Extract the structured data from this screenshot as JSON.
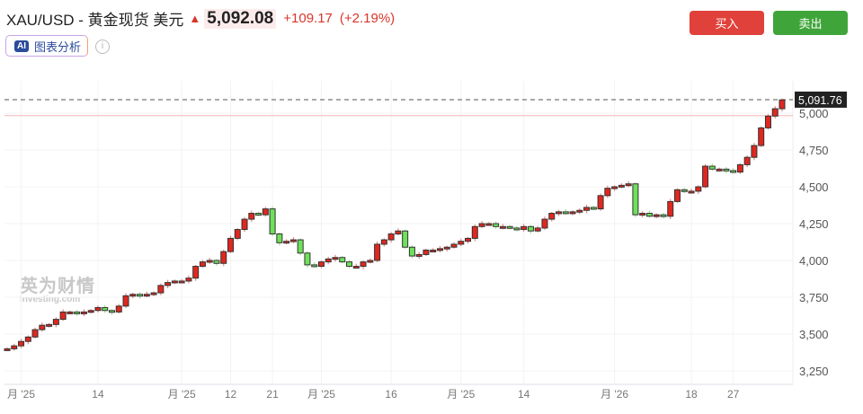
{
  "header": {
    "symbol": "XAU/USD - 黄金现货 美元",
    "direction_icon": "arrow-up-icon",
    "price": "5,092.08",
    "change": "+109.17",
    "change_pct": "(+2.19%)"
  },
  "ai_button": {
    "badge": "AI",
    "label": "图表分析"
  },
  "info_icon": "i",
  "buttons": {
    "buy": "买入",
    "sell": "卖出"
  },
  "watermark": {
    "cn": "英为财情",
    "en": "Investing.com"
  },
  "colors": {
    "up": "#e0271f",
    "down": "#6fe05a",
    "buy": "#e0413a",
    "sell": "#3fa53a",
    "prev_close_line": "#f5b5b5"
  },
  "chart_data": {
    "type": "candlestick",
    "y_ticks": [
      "3,250",
      "3,500",
      "3,750",
      "4,000",
      "4,250",
      "4,500",
      "4,750",
      "5,000"
    ],
    "y_tick_values": [
      3250,
      3500,
      3750,
      4000,
      4250,
      4500,
      4750,
      5000
    ],
    "ylim": [
      3200,
      5130
    ],
    "current_price_label": "5,091.76",
    "current_price": 5091.76,
    "previous_close": 4982.91,
    "x_ticks": [
      {
        "label": "月 '25",
        "index": 2
      },
      {
        "label": "14",
        "index": 13
      },
      {
        "label": "月 '25",
        "index": 25
      },
      {
        "label": "12",
        "index": 32
      },
      {
        "label": "21",
        "index": 38
      },
      {
        "label": "月 '25",
        "index": 45
      },
      {
        "label": "16",
        "index": 55
      },
      {
        "label": "月 '25",
        "index": 65
      },
      {
        "label": "14",
        "index": 74
      },
      {
        "label": "月 '26",
        "index": 87
      },
      {
        "label": "18",
        "index": 98
      },
      {
        "label": "27",
        "index": 104
      }
    ],
    "close": [
      3400,
      3420,
      3450,
      3480,
      3530,
      3560,
      3565,
      3600,
      3650,
      3650,
      3640,
      3650,
      3660,
      3680,
      3660,
      3650,
      3690,
      3760,
      3770,
      3760,
      3770,
      3780,
      3830,
      3850,
      3860,
      3860,
      3880,
      3960,
      3990,
      4000,
      3980,
      4060,
      4150,
      4210,
      4280,
      4320,
      4310,
      4350,
      4180,
      4120,
      4130,
      4140,
      4050,
      3970,
      3960,
      3990,
      4010,
      4020,
      3990,
      3960,
      3960,
      3990,
      4000,
      4110,
      4140,
      4180,
      4200,
      4090,
      4030,
      4040,
      4070,
      4070,
      4080,
      4090,
      4110,
      4130,
      4150,
      4230,
      4250,
      4250,
      4230,
      4230,
      4220,
      4210,
      4230,
      4200,
      4220,
      4280,
      4320,
      4330,
      4320,
      4330,
      4340,
      4360,
      4350,
      4440,
      4490,
      4500,
      4510,
      4520,
      4310,
      4320,
      4300,
      4310,
      4300,
      4400,
      4480,
      4470,
      4470,
      4500,
      4640,
      4620,
      4620,
      4610,
      4600,
      4650,
      4700,
      4780,
      4900,
      4980,
      5030,
      5090
    ]
  }
}
